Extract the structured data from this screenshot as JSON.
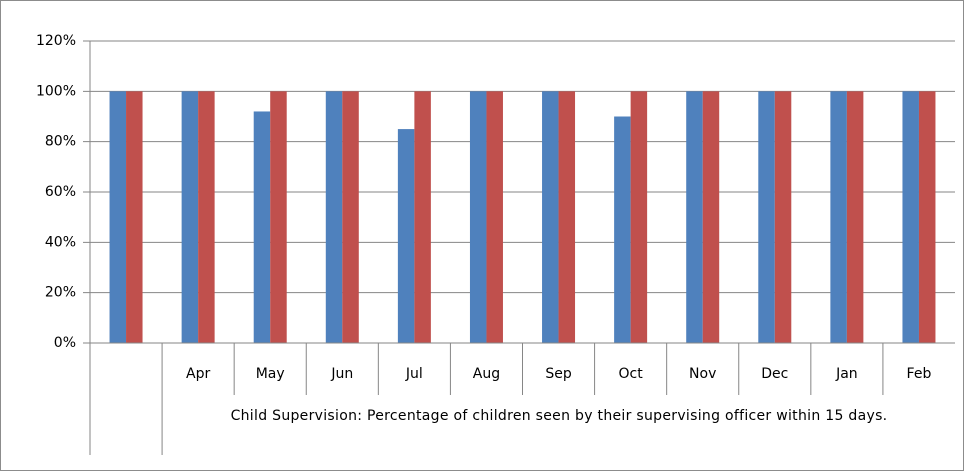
{
  "chart_data": {
    "type": "bar",
    "categories": [
      null,
      "Apr",
      "May",
      "Jun",
      "Jul",
      "Aug",
      "Sep",
      "Oct",
      "Nov",
      "Dec",
      "Jan",
      "Feb"
    ],
    "group_label": "Child Supervision: Percentage of children seen by their supervising officer within 15 days.",
    "series": [
      {
        "color": "#4f81bd",
        "values": [
          100,
          100,
          92,
          100,
          85,
          100,
          100,
          90,
          100,
          100,
          100,
          100
        ]
      },
      {
        "color": "#c0504d",
        "values": [
          100,
          100,
          100,
          100,
          100,
          100,
          100,
          100,
          100,
          100,
          100,
          100
        ]
      }
    ],
    "ylim": [
      0,
      120
    ],
    "yticks": [
      {
        "value": 0,
        "label": "0%"
      },
      {
        "value": 20,
        "label": "20%"
      },
      {
        "value": 40,
        "label": "40%"
      },
      {
        "value": 60,
        "label": "60%"
      },
      {
        "value": 80,
        "label": "80%"
      },
      {
        "value": 100,
        "label": "100%"
      },
      {
        "value": 120,
        "label": "120%"
      }
    ],
    "grid": true
  }
}
